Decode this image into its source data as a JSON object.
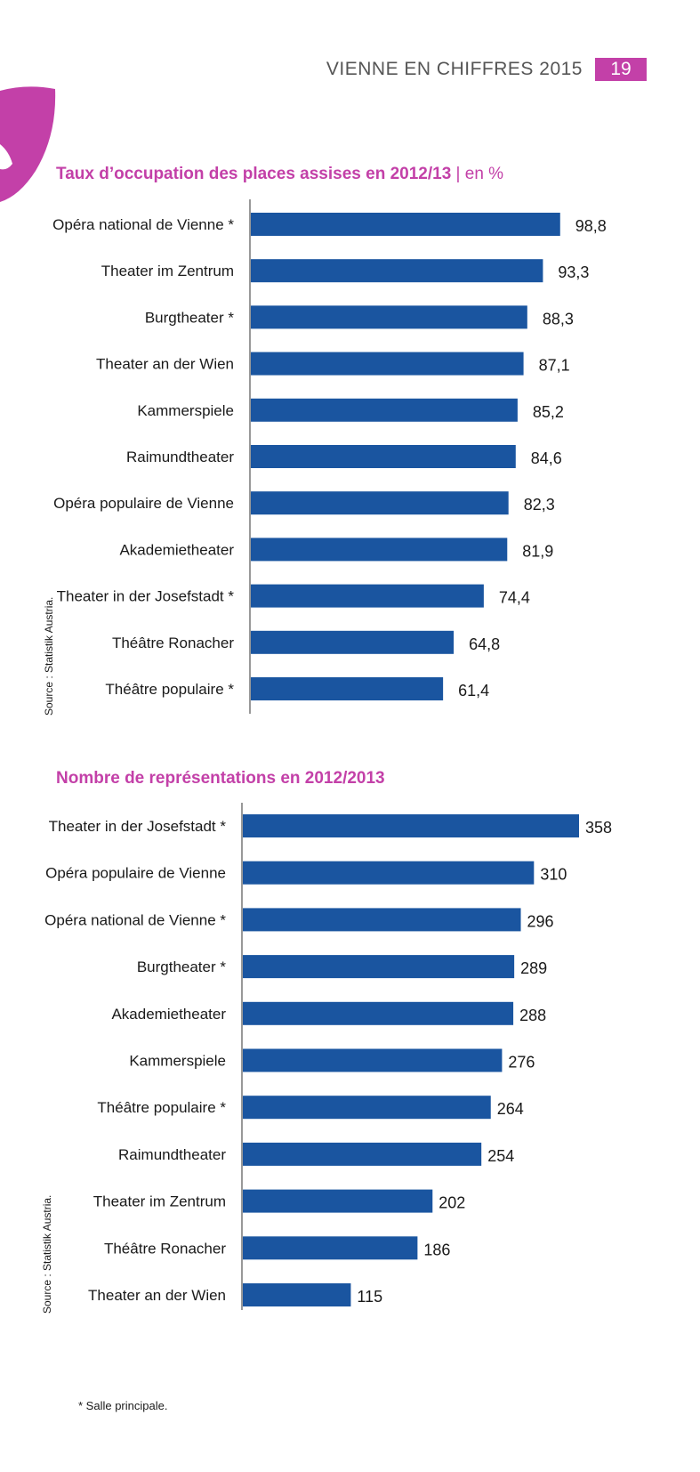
{
  "header": {
    "title": "VIENNE EN CHIFFRES 2015",
    "page_number": "19"
  },
  "colors": {
    "accent": "#c340a8",
    "bar": "#1a55a0",
    "axis": "#555555"
  },
  "icons": {
    "mask": "theatre-mask-icon"
  },
  "chart_data": [
    {
      "type": "bar",
      "orientation": "horizontal",
      "title": "Taux d’occupation des places assises en 2012/13",
      "unit_label": "| en %",
      "categories": [
        "Opéra national de Vienne *",
        "Theater im Zentrum",
        "Burgtheater *",
        "Theater an der Wien",
        "Kammerspiele",
        "Raimundtheater",
        "Opéra populaire de Vienne",
        "Akademietheater",
        "Theater in der Josefstadt *",
        "Théâtre Ronacher",
        "Théâtre populaire *"
      ],
      "values": [
        98.8,
        93.3,
        88.3,
        87.1,
        85.2,
        84.6,
        82.3,
        81.9,
        74.4,
        64.8,
        61.4
      ],
      "value_labels": [
        "98,8",
        "93,3",
        "88,3",
        "87,1",
        "85,2",
        "84,6",
        "82,3",
        "81,9",
        "74,4",
        "64,8",
        "61,4"
      ],
      "xlim": [
        0,
        100
      ],
      "source": "Source : Statistik Austria."
    },
    {
      "type": "bar",
      "orientation": "horizontal",
      "title": "Nombre de représentations en 2012/2013",
      "unit_label": "",
      "categories": [
        "Theater in der Josefstadt *",
        "Opéra populaire de Vienne",
        "Opéra national  de Vienne *",
        "Burgtheater *",
        "Akademietheater",
        "Kammerspiele",
        "Théâtre populaire *",
        "Raimundtheater",
        "Theater im Zentrum",
        "Théâtre Ronacher",
        "Theater an der Wien"
      ],
      "values": [
        358,
        310,
        296,
        289,
        288,
        276,
        264,
        254,
        202,
        186,
        115
      ],
      "value_labels": [
        "358",
        "310",
        "296",
        "289",
        "288",
        "276",
        "264",
        "254",
        "202",
        "186",
        "115"
      ],
      "xlim": [
        0,
        358
      ],
      "source": "Source : Statistik Austria.",
      "footnote": "* Salle principale."
    }
  ]
}
